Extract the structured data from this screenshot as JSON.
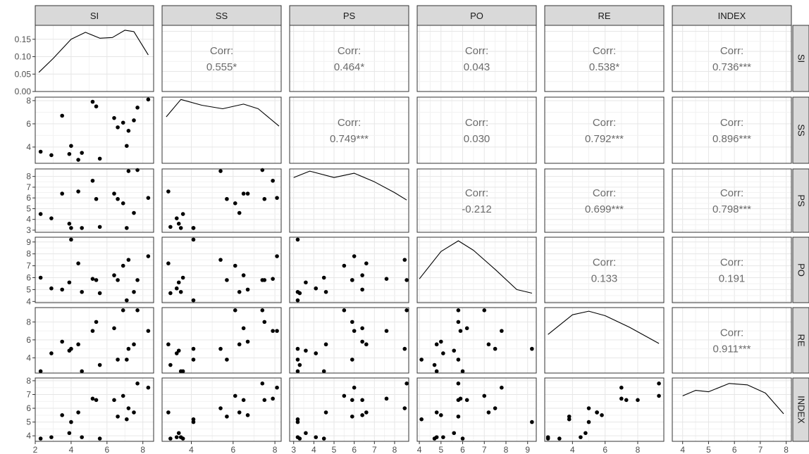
{
  "variables": [
    "SI",
    "SS",
    "PS",
    "PO",
    "RE",
    "INDEX"
  ],
  "colors": {
    "strip_fill": "#d9d9d9",
    "panel_border": "#333333",
    "grid_major": "#e6e6e6",
    "grid_minor": "#f2f2f2",
    "point": "#000000",
    "corr_text": "#6b6b6b"
  },
  "chart_data": {
    "type": "scatter",
    "title": "",
    "layout": "pairs-matrix (lower: scatter, diagonal: density, upper: correlation)",
    "axes": {
      "SI": {
        "range": [
          2.0,
          8.6
        ],
        "ticks": [
          2,
          4,
          6,
          8
        ]
      },
      "SS": {
        "range": [
          2.6,
          8.3
        ],
        "ticks": [
          4,
          6,
          8
        ]
      },
      "PS": {
        "range": [
          2.8,
          8.7
        ],
        "ticks": [
          3,
          4,
          5,
          6,
          7,
          8
        ]
      },
      "PO": {
        "range": [
          3.9,
          9.4
        ],
        "ticks": [
          4,
          5,
          6,
          7,
          8,
          9
        ]
      },
      "RE": {
        "range": [
          2.3,
          9.6
        ],
        "ticks": [
          4,
          6,
          8
        ]
      },
      "INDEX": {
        "range": [
          3.6,
          8.2
        ],
        "ticks": [
          4,
          5,
          6,
          7,
          8
        ]
      }
    },
    "density_axis": {
      "range": [
        0,
        0.19
      ],
      "ticks": [
        "0.00",
        "0.05",
        "0.10",
        "0.15"
      ]
    },
    "observations": {
      "SI": [
        2.3,
        2.9,
        3.5,
        3.9,
        4.0,
        4.4,
        4.6,
        5.2,
        5.4,
        5.6,
        6.4,
        6.6,
        6.9,
        7.1,
        7.2,
        7.5,
        7.7,
        8.3
      ],
      "SS": [
        3.6,
        3.3,
        6.7,
        3.4,
        4.1,
        2.9,
        3.5,
        7.9,
        7.5,
        3.0,
        6.5,
        5.7,
        6.1,
        4.1,
        5.4,
        6.3,
        7.4,
        8.1
      ],
      "PS": [
        4.5,
        4.1,
        6.4,
        3.6,
        3.2,
        6.6,
        3.2,
        7.6,
        5.9,
        3.3,
        6.4,
        5.9,
        5.5,
        3.2,
        8.5,
        4.6,
        8.6,
        6.0
      ],
      "PO": [
        6.0,
        5.1,
        5.0,
        5.6,
        9.2,
        7.2,
        4.8,
        5.9,
        5.8,
        4.7,
        6.2,
        5.8,
        7.0,
        4.1,
        7.5,
        4.8,
        5.8,
        7.8
      ],
      "RE": [
        2.5,
        4.5,
        5.8,
        4.8,
        5.0,
        5.5,
        2.5,
        7.0,
        8.0,
        3.2,
        7.3,
        3.8,
        9.3,
        3.8,
        5.0,
        5.5,
        9.3,
        7.0
      ],
      "INDEX": [
        3.8,
        3.9,
        5.5,
        4.2,
        5.0,
        5.7,
        3.9,
        6.7,
        6.6,
        3.8,
        6.6,
        5.4,
        6.9,
        5.2,
        6.0,
        5.7,
        7.8,
        7.5
      ]
    },
    "density_curves": {
      "SI": [
        [
          2.2,
          0.055
        ],
        [
          3.0,
          0.095
        ],
        [
          4.0,
          0.15
        ],
        [
          4.8,
          0.17
        ],
        [
          5.6,
          0.153
        ],
        [
          6.3,
          0.155
        ],
        [
          7.0,
          0.176
        ],
        [
          7.5,
          0.172
        ],
        [
          8.3,
          0.105
        ]
      ],
      "SS": [
        [
          2.8,
          6.6
        ],
        [
          3.5,
          8.1
        ],
        [
          4.5,
          7.6
        ],
        [
          5.5,
          7.3
        ],
        [
          6.5,
          7.7
        ],
        [
          7.2,
          7.3
        ],
        [
          8.2,
          5.8
        ]
      ],
      "PS": [
        [
          3.0,
          7.9
        ],
        [
          3.8,
          8.5
        ],
        [
          5.0,
          7.9
        ],
        [
          6.0,
          8.3
        ],
        [
          7.0,
          7.5
        ],
        [
          8.0,
          6.5
        ],
        [
          8.6,
          5.8
        ]
      ],
      "PO": [
        [
          4.0,
          5.9
        ],
        [
          5.0,
          8.2
        ],
        [
          5.8,
          9.1
        ],
        [
          6.5,
          8.3
        ],
        [
          7.5,
          6.7
        ],
        [
          8.5,
          5.0
        ],
        [
          9.2,
          4.7
        ]
      ],
      "RE": [
        [
          2.5,
          6.6
        ],
        [
          4.0,
          8.8
        ],
        [
          5.0,
          9.2
        ],
        [
          6.0,
          8.7
        ],
        [
          7.5,
          7.4
        ],
        [
          9.3,
          5.6
        ]
      ],
      "INDEX": [
        [
          4.0,
          6.9
        ],
        [
          4.5,
          7.3
        ],
        [
          5.0,
          7.2
        ],
        [
          5.8,
          7.8
        ],
        [
          6.5,
          7.7
        ],
        [
          7.2,
          7.1
        ],
        [
          7.9,
          5.6
        ]
      ]
    },
    "correlation_label": "Corr:",
    "correlations": [
      {
        "row": "SI",
        "col": "SS",
        "value": "0.555*"
      },
      {
        "row": "SI",
        "col": "PS",
        "value": "0.464*"
      },
      {
        "row": "SI",
        "col": "PO",
        "value": "0.043"
      },
      {
        "row": "SI",
        "col": "RE",
        "value": "0.538*"
      },
      {
        "row": "SI",
        "col": "INDEX",
        "value": "0.736***"
      },
      {
        "row": "SS",
        "col": "PS",
        "value": "0.749***"
      },
      {
        "row": "SS",
        "col": "PO",
        "value": "0.030"
      },
      {
        "row": "SS",
        "col": "RE",
        "value": "0.792***"
      },
      {
        "row": "SS",
        "col": "INDEX",
        "value": "0.896***"
      },
      {
        "row": "PS",
        "col": "PO",
        "value": "-0.212"
      },
      {
        "row": "PS",
        "col": "RE",
        "value": "0.699***"
      },
      {
        "row": "PS",
        "col": "INDEX",
        "value": "0.798***"
      },
      {
        "row": "PO",
        "col": "RE",
        "value": "0.133"
      },
      {
        "row": "PO",
        "col": "INDEX",
        "value": "0.191"
      },
      {
        "row": "RE",
        "col": "INDEX",
        "value": "0.911***"
      }
    ],
    "grid": true,
    "legend": "none"
  }
}
